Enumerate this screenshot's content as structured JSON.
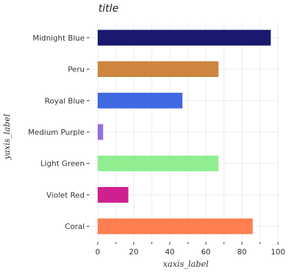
{
  "chart_data": {
    "type": "bar",
    "orientation": "horizontal",
    "title": "title",
    "xlabel": "xaxis_label",
    "ylabel": "yaxis_label",
    "xlim": [
      0,
      100
    ],
    "xticks": [
      0,
      20,
      40,
      60,
      80,
      100
    ],
    "grid": true,
    "categories": [
      "Coral",
      "Violet Red",
      "Light Green",
      "Medium Purple",
      "Royal Blue",
      "Peru",
      "Midnight Blue"
    ],
    "values": [
      86,
      17,
      67,
      3,
      47,
      67,
      96
    ],
    "colors": [
      "#ff7f50",
      "#d02090",
      "#90ee90",
      "#9370db",
      "#4169e1",
      "#cd853f",
      "#191970"
    ]
  }
}
